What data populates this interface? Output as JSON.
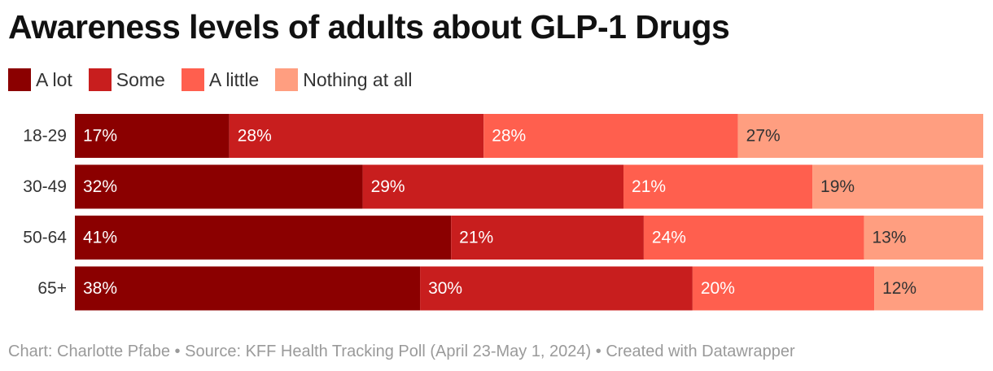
{
  "title": "Awareness levels of adults about GLP-1 Drugs",
  "legend": [
    {
      "label": "A lot",
      "color": "#8b0000"
    },
    {
      "label": "Some",
      "color": "#c81e1e"
    },
    {
      "label": "A little",
      "color": "#ff5f4e"
    },
    {
      "label": "Nothing at all",
      "color": "#ff9e80"
    }
  ],
  "footer": {
    "credit": "Chart: Charlotte Pfabe • Source: KFF Health Tracking Poll (April 23-May 1, 2024) • Created with Datawrapper"
  },
  "chart_data": {
    "type": "bar",
    "orientation": "horizontal",
    "stacked": true,
    "normalized": true,
    "title": "Awareness levels of adults about GLP-1 Drugs",
    "categories": [
      "18-29",
      "30-49",
      "50-64",
      "65+"
    ],
    "series": [
      {
        "name": "A lot",
        "color": "#8b0000",
        "values": [
          17,
          32,
          41,
          38
        ],
        "labels": [
          "17%",
          "32%",
          "41%",
          "38%"
        ]
      },
      {
        "name": "Some",
        "color": "#c81e1e",
        "values": [
          28,
          29,
          21,
          30
        ],
        "labels": [
          "28%",
          "29%",
          "21%",
          "30%"
        ]
      },
      {
        "name": "A little",
        "color": "#ff5f4e",
        "values": [
          28,
          21,
          24,
          20
        ],
        "labels": [
          "28%",
          "21%",
          "24%",
          "20%"
        ]
      },
      {
        "name": "Nothing at all",
        "color": "#ff9e80",
        "values": [
          27,
          19,
          13,
          12
        ],
        "labels": [
          "27%",
          "19%",
          "13%",
          "12%"
        ]
      }
    ],
    "legend_position": "top-left",
    "grid": false
  }
}
